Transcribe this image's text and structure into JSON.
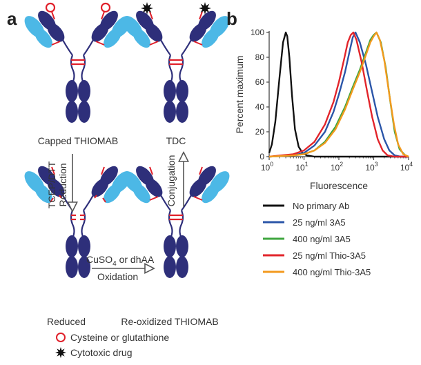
{
  "panel_a": {
    "letter": "a",
    "capped_label": "Capped THIOMAB",
    "tdc_label": "TDC",
    "reduced_label": "Reduced",
    "reoxidized_label": "Re-oxidized THIOMAB",
    "reduction_reagent": "TCEP/DTT",
    "reduction_label": "Reduction",
    "conjugation_label": "Conjugation",
    "oxidation_reagent_prefix": "CuSO",
    "oxidation_reagent_sub": "4",
    "oxidation_reagent_suffix": " or dhAA",
    "oxidation_label": "Oxidation",
    "legend": [
      {
        "icon": "red-circle-icon",
        "label": "Cysteine or glutathione"
      },
      {
        "icon": "black-star-icon",
        "label": "Cytotoxic drug"
      }
    ],
    "colors": {
      "heavy_chain": "#2e2f7a",
      "light_chain_variable": "#4cb8e6",
      "disulfide": "#e0202a",
      "drug": "#111111",
      "arrow": "#555555"
    }
  },
  "panel_b": {
    "letter": "b"
  },
  "chart_data": {
    "type": "line",
    "title": "",
    "xlabel": "Fluorescence",
    "ylabel": "Percent maximum",
    "x_scale": "log",
    "xlim": [
      1,
      10000
    ],
    "ylim": [
      0,
      100
    ],
    "x_ticks": [
      1,
      10,
      100,
      1000,
      10000
    ],
    "x_tick_labels": [
      {
        "base": "10",
        "exp": "0"
      },
      {
        "base": "10",
        "exp": "1"
      },
      {
        "base": "10",
        "exp": "2"
      },
      {
        "base": "10",
        "exp": "3"
      },
      {
        "base": "10",
        "exp": "4"
      }
    ],
    "y_ticks": [
      0,
      20,
      40,
      60,
      80,
      100
    ],
    "y_tick_labels": [
      "0",
      "20",
      "40",
      "60",
      "80",
      "100"
    ],
    "legend_position": "below",
    "series": [
      {
        "name": "No primary Ab",
        "color": "#111111",
        "x": [
          1,
          1.2,
          1.5,
          2,
          2.5,
          3,
          3.3,
          3.8,
          4.5,
          5.5,
          7,
          9,
          12,
          20,
          100,
          1000,
          10000
        ],
        "y": [
          3,
          10,
          28,
          65,
          92,
          100,
          97,
          80,
          50,
          22,
          8,
          3,
          1,
          0,
          0,
          0,
          0
        ]
      },
      {
        "name": "25 ng/ml 3A5",
        "color": "#2a55a8",
        "x": [
          1,
          5,
          10,
          20,
          40,
          70,
          100,
          150,
          200,
          250,
          300,
          400,
          600,
          900,
          1300,
          2000,
          2800,
          4000,
          6000,
          10000
        ],
        "y": [
          0,
          1,
          3,
          9,
          20,
          36,
          50,
          68,
          84,
          96,
          100,
          92,
          74,
          52,
          32,
          14,
          5,
          1,
          0,
          0
        ]
      },
      {
        "name": "400 ng/ml 3A5",
        "color": "#3fa63f",
        "x": [
          1,
          5,
          10,
          20,
          40,
          80,
          150,
          250,
          400,
          600,
          800,
          1000,
          1200,
          1600,
          2200,
          3000,
          4000,
          5500,
          8000,
          10000
        ],
        "y": [
          0,
          1,
          2,
          5,
          12,
          24,
          40,
          56,
          70,
          84,
          94,
          98,
          100,
          92,
          72,
          44,
          20,
          6,
          1,
          0
        ]
      },
      {
        "name": "25 ng/ml Thio-3A5",
        "color": "#e2242a",
        "x": [
          1,
          5,
          10,
          20,
          40,
          70,
          100,
          140,
          180,
          220,
          260,
          320,
          450,
          650,
          900,
          1300,
          1800,
          2500,
          4000,
          10000
        ],
        "y": [
          0,
          2,
          5,
          12,
          26,
          44,
          60,
          78,
          92,
          98,
          100,
          94,
          76,
          52,
          32,
          14,
          5,
          1,
          0,
          0
        ]
      },
      {
        "name": "400 ng/ml Thio-3A5",
        "color": "#f39a1e",
        "x": [
          1,
          5,
          10,
          20,
          40,
          80,
          150,
          250,
          400,
          600,
          800,
          1000,
          1200,
          1500,
          2000,
          2800,
          3800,
          5000,
          7000,
          10000
        ],
        "y": [
          0,
          1,
          2,
          5,
          11,
          22,
          38,
          54,
          68,
          82,
          92,
          97,
          100,
          94,
          78,
          50,
          26,
          10,
          2,
          0
        ]
      }
    ]
  }
}
